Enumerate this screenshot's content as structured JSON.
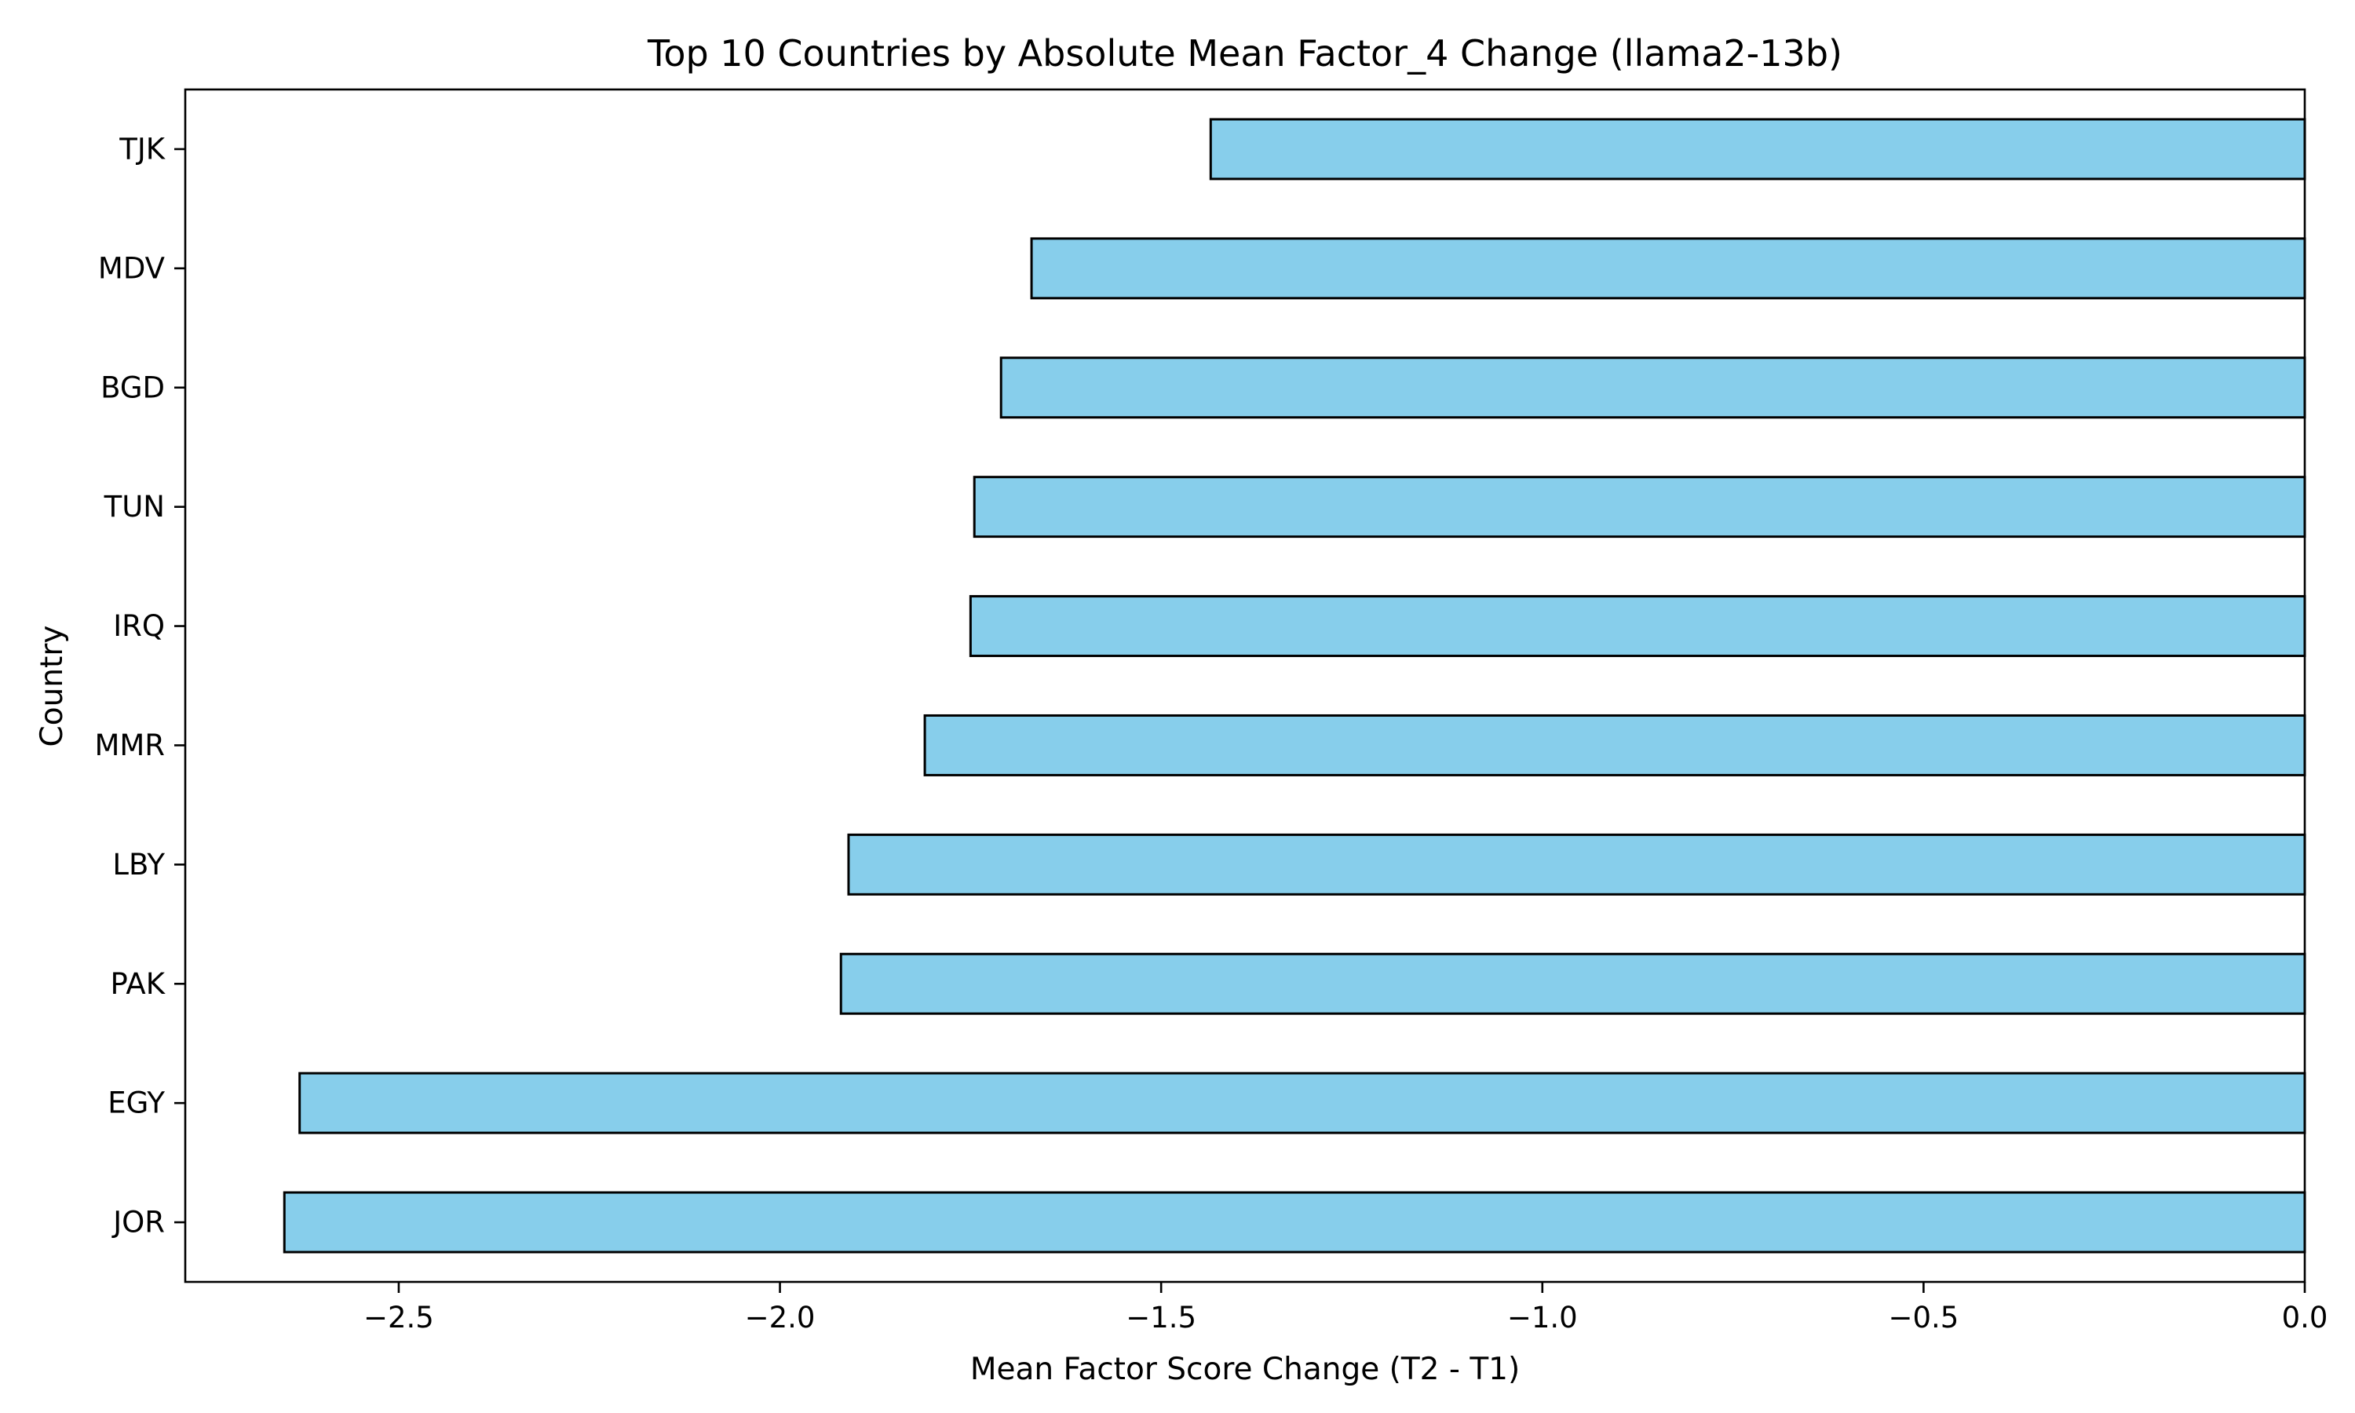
{
  "chart_data": {
    "type": "bar",
    "orientation": "horizontal",
    "title": "Top 10 Countries by Absolute Mean Factor_4 Change (llama2-13b)",
    "xlabel": "Mean Factor Score Change (T2 - T1)",
    "ylabel": "Country",
    "categories": [
      "JOR",
      "EGY",
      "PAK",
      "LBY",
      "MMR",
      "IRQ",
      "TUN",
      "BGD",
      "MDV",
      "TJK"
    ],
    "values": [
      -2.65,
      -2.63,
      -1.92,
      -1.91,
      -1.81,
      -1.75,
      -1.745,
      -1.71,
      -1.67,
      -1.435
    ],
    "xlim": [
      -2.78,
      0.0
    ],
    "xticks": [
      -2.5,
      -2.0,
      -1.5,
      -1.0,
      -0.5,
      0.0
    ],
    "xtick_labels": [
      "−2.5",
      "−2.0",
      "−1.5",
      "−1.0",
      "−0.5",
      "0.0"
    ],
    "grid": false,
    "legend": "none",
    "colors": {
      "bar_fill": "#87ceeb",
      "bar_edge": "#000000",
      "axis": "#000000"
    }
  }
}
